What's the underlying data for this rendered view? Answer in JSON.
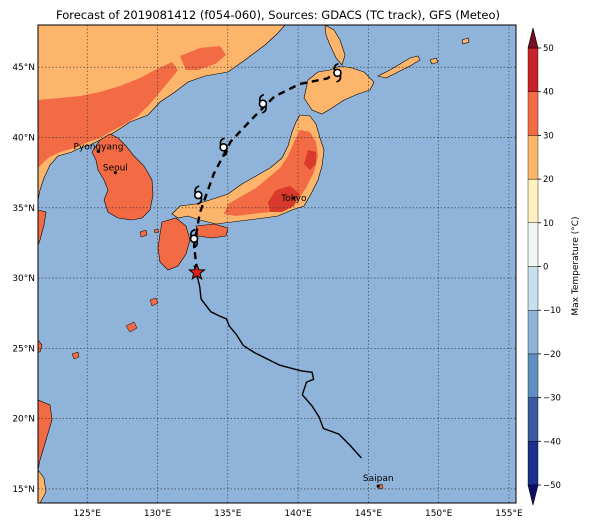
{
  "title": "Forecast of 2019081412 (f054-060), Sources: GDACS (TC track), GFS (Meteo)",
  "colors": {
    "ocean": "#8fb3d9",
    "temp_20_30": "#fdb46b",
    "temp_30_40": "#f26b45",
    "temp_40_50": "#d93a2b",
    "track": "#000000",
    "star": "#e0211f"
  },
  "map": {
    "lon_range": [
      121.5,
      155.5
    ],
    "lat_range": [
      14,
      48
    ],
    "lon_ticks": [
      {
        "lon": 125,
        "label": "125°E"
      },
      {
        "lon": 130,
        "label": "130°E"
      },
      {
        "lon": 135,
        "label": "135°E"
      },
      {
        "lon": 140,
        "label": "140°E"
      },
      {
        "lon": 145,
        "label": "145°E"
      },
      {
        "lon": 150,
        "label": "150°E"
      },
      {
        "lon": 155,
        "label": "155°E"
      }
    ],
    "lat_ticks": [
      {
        "lat": 45,
        "label": "45°N"
      },
      {
        "lat": 40,
        "label": "40°N"
      },
      {
        "lat": 35,
        "label": "35°N"
      },
      {
        "lat": 30,
        "label": "30°N"
      },
      {
        "lat": 25,
        "label": "25°N"
      },
      {
        "lat": 20,
        "label": "20°N"
      },
      {
        "lat": 15,
        "label": "15°N"
      }
    ],
    "cities": [
      {
        "name": "Pyongyang",
        "lon": 125.8,
        "lat": 39.0
      },
      {
        "name": "Seoul",
        "lon": 127.0,
        "lat": 37.5
      },
      {
        "name": "Tokyo",
        "lon": 139.7,
        "lat": 35.7
      },
      {
        "name": "Saipan",
        "lon": 145.7,
        "lat": 15.2
      }
    ],
    "observed_track": [
      [
        144.5,
        17.2
      ],
      [
        143.7,
        18.1
      ],
      [
        142.9,
        18.9
      ],
      [
        141.8,
        19.3
      ],
      [
        141.5,
        20.1
      ],
      [
        141.0,
        20.9
      ],
      [
        140.3,
        21.7
      ],
      [
        140.6,
        22.6
      ],
      [
        141.1,
        22.8
      ],
      [
        141.0,
        23.3
      ],
      [
        140.2,
        23.4
      ],
      [
        138.7,
        23.8
      ],
      [
        136.9,
        24.7
      ],
      [
        136.1,
        25.2
      ],
      [
        135.6,
        26.0
      ],
      [
        135.1,
        26.6
      ],
      [
        134.9,
        27.1
      ],
      [
        134.4,
        27.3
      ],
      [
        133.8,
        27.6
      ],
      [
        133.1,
        28.5
      ],
      [
        133.0,
        29.4
      ],
      [
        132.8,
        30.2
      ],
      [
        132.6,
        30.9
      ]
    ],
    "forecast_track": [
      [
        132.8,
        30.5
      ],
      [
        132.6,
        32.3
      ],
      [
        133.0,
        34.6
      ],
      [
        134.0,
        37.4
      ],
      [
        135.2,
        39.7
      ],
      [
        136.7,
        41.3
      ],
      [
        138.3,
        42.9
      ],
      [
        140.1,
        43.8
      ],
      [
        142.1,
        44.2
      ],
      [
        142.7,
        44.7
      ]
    ],
    "forecast_points": [
      {
        "lon": 132.6,
        "lat": 32.8
      },
      {
        "lon": 132.9,
        "lat": 35.9
      },
      {
        "lon": 134.7,
        "lat": 39.3
      },
      {
        "lon": 137.5,
        "lat": 42.4
      },
      {
        "lon": 142.8,
        "lat": 44.6
      }
    ],
    "storm_position": {
      "lon": 132.8,
      "lat": 30.4
    }
  },
  "colorbar": {
    "label": "Max Temperature (°C)",
    "levels": [
      -50,
      -40,
      -30,
      -20,
      -10,
      0,
      10,
      20,
      30,
      40,
      50
    ],
    "colors": [
      "#1c2f8a",
      "#3a5aa3",
      "#5f8fc1",
      "#8fb3d9",
      "#c7dfee",
      "#eef7f2",
      "#fff0c0",
      "#fdb46b",
      "#f26b45",
      "#c8222a"
    ],
    "tick_labels": [
      "50",
      "40",
      "30",
      "20",
      "10",
      "0",
      "−10",
      "−20",
      "−30",
      "−40",
      "−50"
    ],
    "extend_top_color": "#7a0d1f",
    "extend_bottom_color": "#0d0d6b"
  }
}
